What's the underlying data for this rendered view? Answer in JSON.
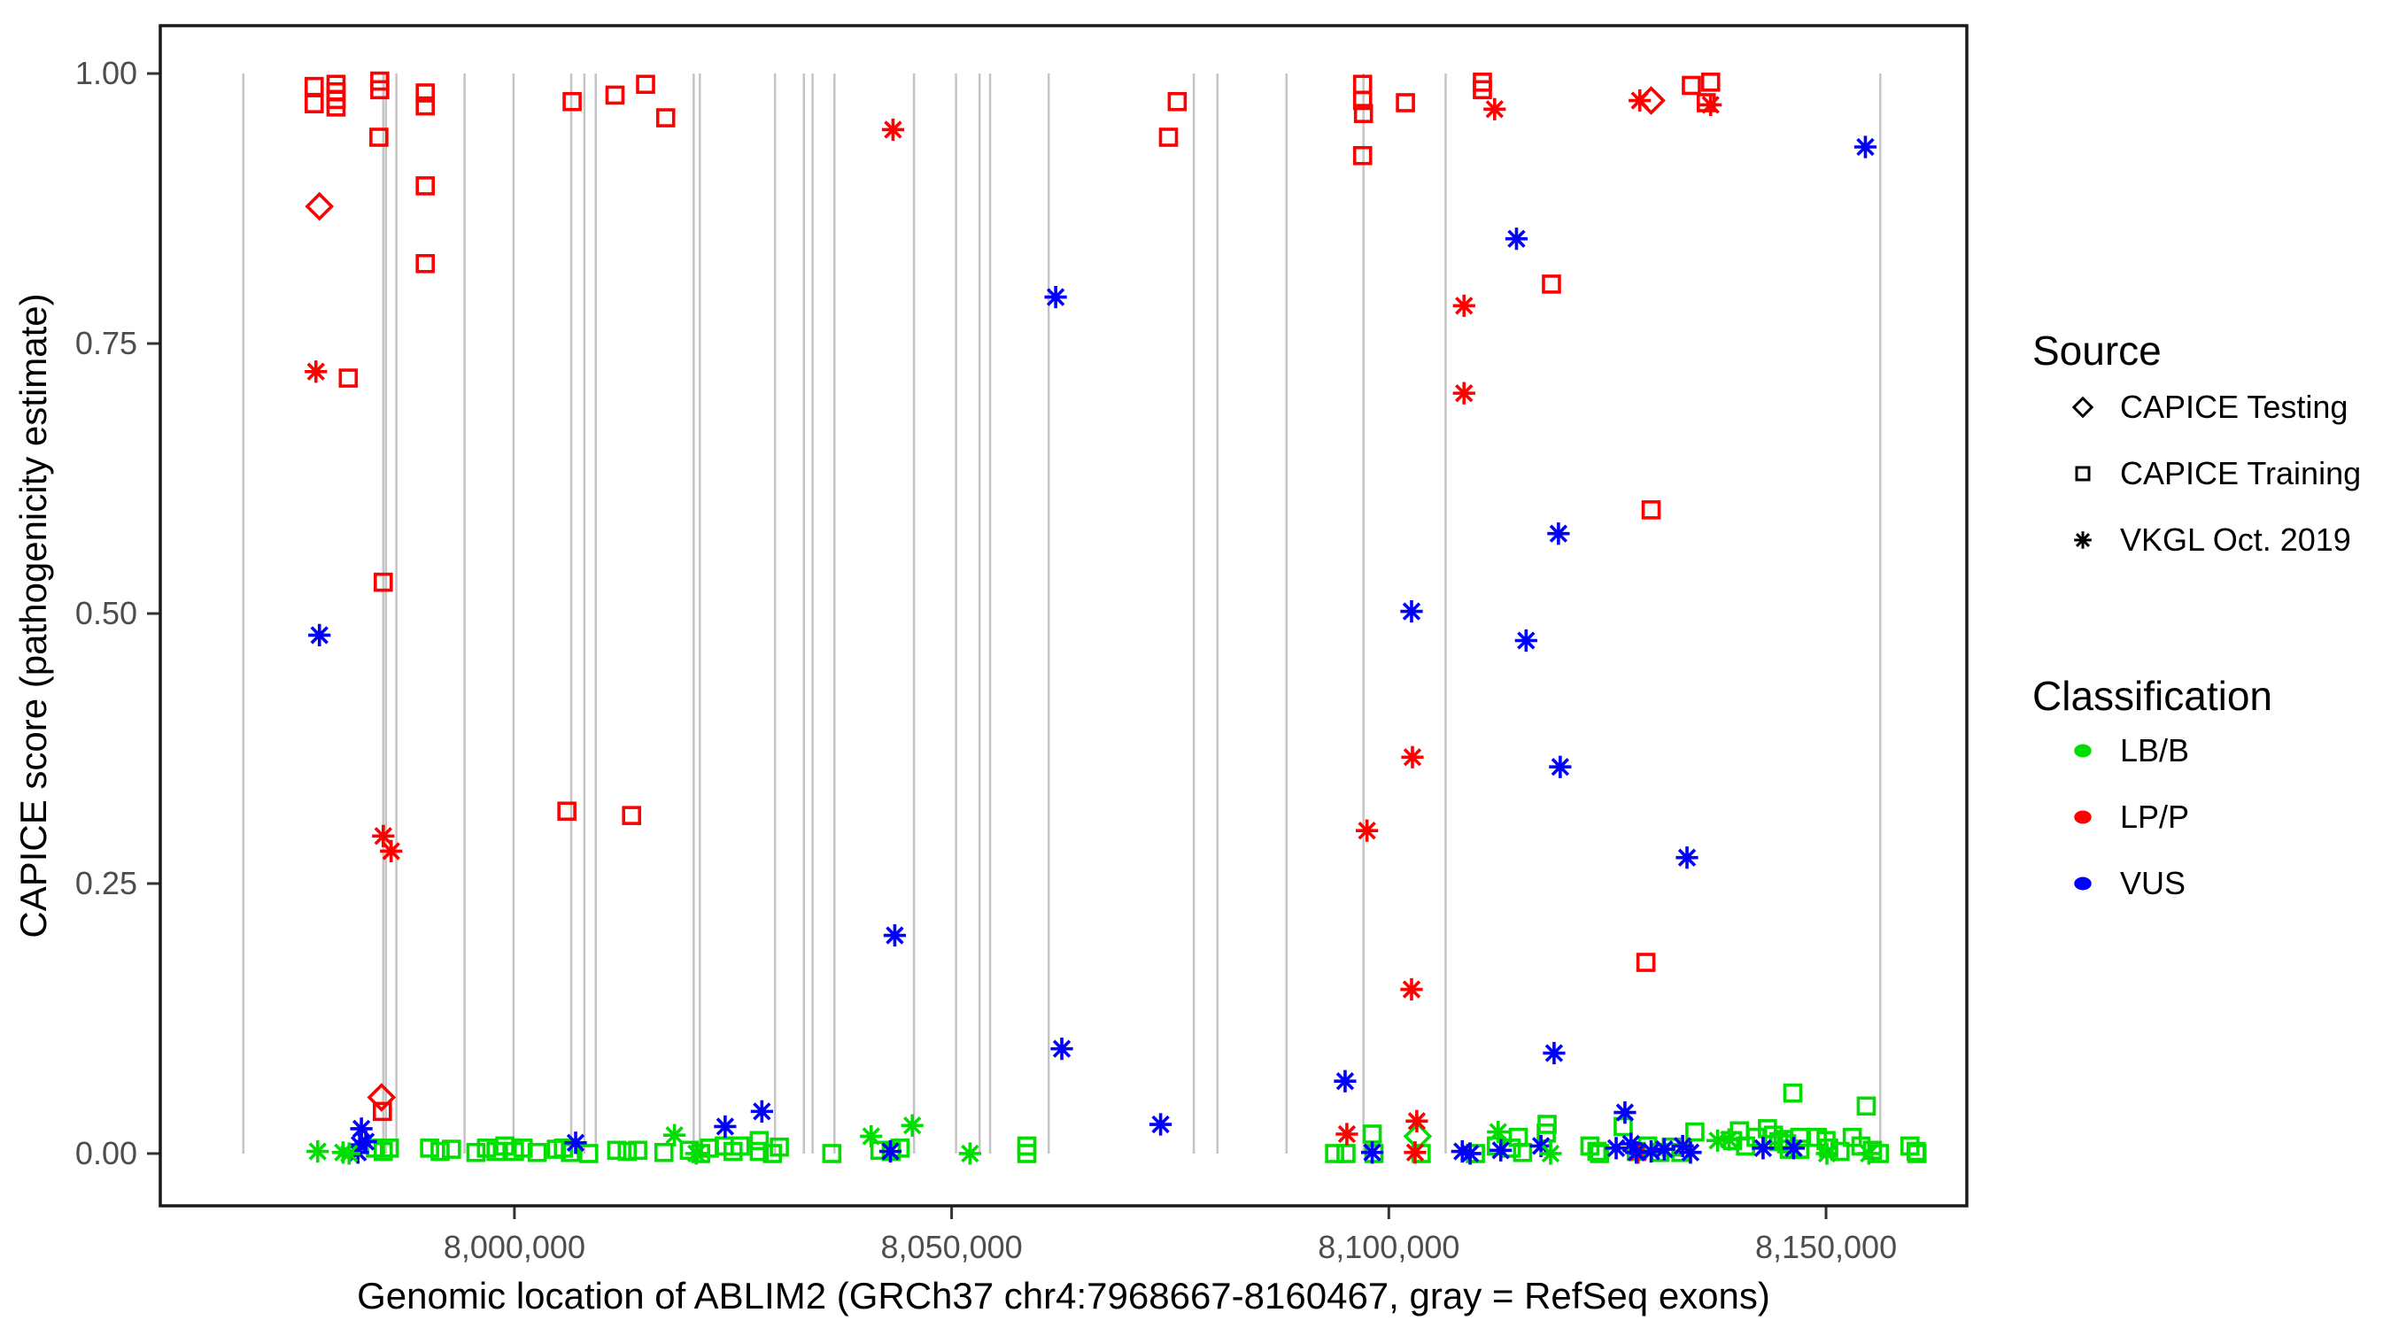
{
  "chart_data": {
    "type": "scatter",
    "title": "",
    "xlabel": "Genomic location of ABLIM2 (GRCh37 chr4:7968667-8160467, gray = RefSeq exons)",
    "ylabel": "CAPICE score (pathogenicity estimate)",
    "x_range": [
      7959500,
      8166100
    ],
    "y_range": [
      -0.0484,
      1.0443
    ],
    "grid": "off",
    "x_axis": {
      "ticks": [
        8000000,
        8050000,
        8100000,
        8150000
      ],
      "tick_labels": [
        "8,000,000",
        "8,050,000",
        "8,100,000",
        "8,150,000"
      ]
    },
    "y_axis": {
      "ticks": [
        0.0,
        0.25,
        0.5,
        0.75,
        1.0
      ],
      "tick_labels": [
        "0.00",
        "0.25",
        "0.50",
        "0.75",
        "1.00"
      ]
    },
    "exon_color": "#c4c4c4",
    "exons": [
      7969000,
      7985000,
      7985300,
      7986500,
      7994300,
      7999900,
      8006500,
      8008000,
      8009300,
      8020500,
      8021200,
      8029800,
      8033100,
      8034100,
      8036600,
      8045700,
      8050500,
      8053200,
      8054400,
      8061100,
      8077700,
      8080400,
      8088300,
      8097100,
      8106500,
      8156200
    ],
    "series": [
      {
        "source": "CAPICE Testing",
        "classification": "LP/P",
        "marker": "diamond",
        "color": "#ff0000",
        "points": [
          [
            7977700,
            0.877
          ],
          [
            7984800,
            0.052
          ],
          [
            8130000,
            0.975
          ]
        ]
      },
      {
        "source": "CAPICE Testing",
        "classification": "LB/B",
        "marker": "diamond",
        "color": "#00dd00",
        "points": [
          [
            8103300,
            0.016
          ]
        ]
      },
      {
        "source": "CAPICE Training",
        "classification": "LP/P",
        "marker": "square",
        "color": "#ff0000",
        "points": [
          [
            7977100,
            0.988
          ],
          [
            7977100,
            0.972
          ],
          [
            7979600,
            0.99
          ],
          [
            7979600,
            0.983
          ],
          [
            7979600,
            0.976
          ],
          [
            7979600,
            0.969
          ],
          [
            7984600,
            0.993
          ],
          [
            7984600,
            0.985
          ],
          [
            7984500,
            0.941
          ],
          [
            7989800,
            0.982
          ],
          [
            7989800,
            0.97
          ],
          [
            7989800,
            0.896
          ],
          [
            7989800,
            0.824
          ],
          [
            7981000,
            0.718
          ],
          [
            7985000,
            0.529
          ],
          [
            7984900,
            0.039
          ],
          [
            8006600,
            0.974
          ],
          [
            8011500,
            0.98
          ],
          [
            8015000,
            0.99
          ],
          [
            8017300,
            0.959
          ],
          [
            8006000,
            0.317
          ],
          [
            8013400,
            0.313
          ],
          [
            8075800,
            0.974
          ],
          [
            8074800,
            0.941
          ],
          [
            8097000,
            0.99
          ],
          [
            8097000,
            0.975
          ],
          [
            8097100,
            0.963
          ],
          [
            8101900,
            0.973
          ],
          [
            8097000,
            0.924
          ],
          [
            8110700,
            0.992
          ],
          [
            8110700,
            0.985
          ],
          [
            8118600,
            0.805
          ],
          [
            8130000,
            0.596
          ],
          [
            8129400,
            0.177
          ],
          [
            8134600,
            0.989
          ],
          [
            8136800,
            0.992
          ],
          [
            8136300,
            0.973
          ]
        ]
      },
      {
        "source": "CAPICE Training",
        "classification": "LB/B",
        "marker": "square",
        "color": "#00dd00",
        "points": [
          [
            7984100,
            0.005
          ],
          [
            7985000,
            0.002
          ],
          [
            7985700,
            0.005
          ],
          [
            7990300,
            0.005
          ],
          [
            7991500,
            0.002
          ],
          [
            7992800,
            0.004
          ],
          [
            7995600,
            0.001
          ],
          [
            7996800,
            0.005
          ],
          [
            7997900,
            0.002
          ],
          [
            7998900,
            0.007
          ],
          [
            8000000,
            0.002
          ],
          [
            8001000,
            0.005
          ],
          [
            8002600,
            0.001
          ],
          [
            8004800,
            0.004
          ],
          [
            8005600,
            0.005
          ],
          [
            8006400,
            0.001
          ],
          [
            8008500,
            0.0
          ],
          [
            8011700,
            0.003
          ],
          [
            8012900,
            0.002
          ],
          [
            8014100,
            0.003
          ],
          [
            8017100,
            0.001
          ],
          [
            8020000,
            0.003
          ],
          [
            8021300,
            0.0
          ],
          [
            8022300,
            0.005
          ],
          [
            8024000,
            0.007
          ],
          [
            8025000,
            0.002
          ],
          [
            8025800,
            0.007
          ],
          [
            8028000,
            0.012
          ],
          [
            8028000,
            0.002
          ],
          [
            8029500,
            0.0
          ],
          [
            8030300,
            0.006
          ],
          [
            8036300,
            0.0
          ],
          [
            8041800,
            0.003
          ],
          [
            8043100,
            0.002
          ],
          [
            8044100,
            0.005
          ],
          [
            8058600,
            0.007
          ],
          [
            8058600,
            0.0
          ],
          [
            8093800,
            0.0
          ],
          [
            8095100,
            0.0
          ],
          [
            8098100,
            0.018
          ],
          [
            8098300,
            0.0
          ],
          [
            8103700,
            0.0
          ],
          [
            8109900,
            0.0
          ],
          [
            8112300,
            0.007
          ],
          [
            8114800,
            0.015
          ],
          [
            8114000,
            0.005
          ],
          [
            8115300,
            0.001
          ],
          [
            8118100,
            0.027
          ],
          [
            8118000,
            0.019
          ],
          [
            8123000,
            0.007
          ],
          [
            8123800,
            0.002
          ],
          [
            8124100,
            0.0
          ],
          [
            8126800,
            0.025
          ],
          [
            8128300,
            0.002
          ],
          [
            8129600,
            0.007
          ],
          [
            8131000,
            0.001
          ],
          [
            8132300,
            0.006
          ],
          [
            8133400,
            0.001
          ],
          [
            8135000,
            0.02
          ],
          [
            8139300,
            0.012
          ],
          [
            8140100,
            0.021
          ],
          [
            8140800,
            0.007
          ],
          [
            8142000,
            0.015
          ],
          [
            8143300,
            0.023
          ],
          [
            8144000,
            0.017
          ],
          [
            8144600,
            0.011
          ],
          [
            8145100,
            0.013
          ],
          [
            8145500,
            0.009
          ],
          [
            8145800,
            0.004
          ],
          [
            8147000,
            0.015
          ],
          [
            8147000,
            0.004
          ],
          [
            8146200,
            0.056
          ],
          [
            8149000,
            0.015
          ],
          [
            8150000,
            0.012
          ],
          [
            8150300,
            0.005
          ],
          [
            8151600,
            0.002
          ],
          [
            8153000,
            0.015
          ],
          [
            8154000,
            0.007
          ],
          [
            8154600,
            0.044
          ],
          [
            8155300,
            0.003
          ],
          [
            8156100,
            0.0
          ],
          [
            8159600,
            0.007
          ],
          [
            8160300,
            0.002
          ],
          [
            8160400,
            0.0
          ]
        ]
      },
      {
        "source": "VKGL Oct. 2019",
        "classification": "LP/P",
        "marker": "asterisk",
        "color": "#ff0000",
        "points": [
          [
            7977300,
            0.724
          ],
          [
            7985000,
            0.294
          ],
          [
            7985900,
            0.28
          ],
          [
            8043300,
            0.948
          ],
          [
            8108600,
            0.785
          ],
          [
            8108600,
            0.704
          ],
          [
            8112100,
            0.967
          ],
          [
            8128700,
            0.975
          ],
          [
            8136800,
            0.971
          ],
          [
            8102700,
            0.367
          ],
          [
            8097500,
            0.299
          ],
          [
            8102600,
            0.152
          ],
          [
            8095200,
            0.018
          ],
          [
            8103200,
            0.03
          ],
          [
            8103000,
            0.001
          ],
          [
            8128500,
            0.001
          ]
        ]
      },
      {
        "source": "VKGL Oct. 2019",
        "classification": "VUS",
        "marker": "asterisk",
        "color": "#0000ff",
        "points": [
          [
            7977700,
            0.48
          ],
          [
            7982500,
            0.023
          ],
          [
            7982300,
            0.008
          ],
          [
            7983000,
            0.011
          ],
          [
            7982100,
            0.001
          ],
          [
            8061900,
            0.793
          ],
          [
            8043500,
            0.202
          ],
          [
            8062600,
            0.097
          ],
          [
            8073900,
            0.027
          ],
          [
            8114600,
            0.847
          ],
          [
            8119400,
            0.574
          ],
          [
            8102600,
            0.502
          ],
          [
            8115700,
            0.475
          ],
          [
            8119600,
            0.358
          ],
          [
            8134100,
            0.274
          ],
          [
            8118900,
            0.093
          ],
          [
            8095000,
            0.067
          ],
          [
            8127000,
            0.038
          ],
          [
            8128300,
            0.001
          ],
          [
            8154500,
            0.932
          ],
          [
            8007000,
            0.01
          ],
          [
            8024100,
            0.025
          ],
          [
            8028300,
            0.039
          ],
          [
            8043000,
            0.002
          ],
          [
            8098100,
            0.001
          ],
          [
            8108400,
            0.002
          ],
          [
            8109300,
            0.0
          ],
          [
            8112800,
            0.003
          ],
          [
            8117400,
            0.007
          ],
          [
            8126000,
            0.005
          ],
          [
            8127700,
            0.009
          ],
          [
            8130000,
            0.002
          ],
          [
            8131500,
            0.004
          ],
          [
            8133600,
            0.007
          ],
          [
            8134500,
            0.001
          ],
          [
            8142800,
            0.005
          ],
          [
            8146300,
            0.005
          ]
        ]
      },
      {
        "source": "VKGL Oct. 2019",
        "classification": "LB/B",
        "marker": "asterisk",
        "color": "#00dd00",
        "points": [
          [
            7977500,
            0.002
          ],
          [
            7980400,
            0.001
          ],
          [
            7981100,
            0.0
          ],
          [
            8018300,
            0.017
          ],
          [
            8020800,
            0.0
          ],
          [
            8045500,
            0.026
          ],
          [
            8040800,
            0.016
          ],
          [
            8052100,
            0.0
          ],
          [
            8112500,
            0.02
          ],
          [
            8118500,
            0.0
          ],
          [
            8137600,
            0.012
          ],
          [
            8138900,
            0.013
          ],
          [
            8150100,
            0.0
          ],
          [
            8154900,
            0.0
          ]
        ]
      }
    ]
  },
  "legend": {
    "source": {
      "title": "Source",
      "items": [
        {
          "label": "CAPICE Testing",
          "marker": "diamond",
          "color": "#000000"
        },
        {
          "label": "CAPICE Training",
          "marker": "square",
          "color": "#000000"
        },
        {
          "label": "VKGL Oct. 2019",
          "marker": "asterisk",
          "color": "#000000"
        }
      ]
    },
    "classification": {
      "title": "Classification",
      "items": [
        {
          "label": "LB/B",
          "marker": "dot",
          "color": "#00dd00"
        },
        {
          "label": "LP/P",
          "marker": "dot",
          "color": "#ff0000"
        },
        {
          "label": "VUS",
          "marker": "dot",
          "color": "#0000ff"
        }
      ]
    }
  },
  "style": {
    "panel_border": "#1a1a1a",
    "tick_label_color": "#4d4d4d",
    "axis_title_color": "#000000"
  }
}
